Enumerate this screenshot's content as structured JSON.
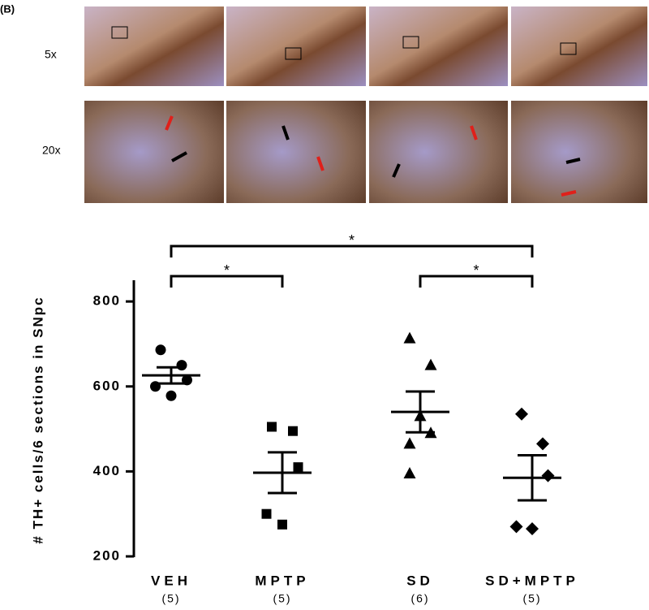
{
  "panel_label": "(B)",
  "row_labels": [
    "5x",
    "20x"
  ],
  "chart_data": {
    "type": "dotplot",
    "y_label": "# TH+ cells/6 sections in SNpc",
    "categories": [
      "VEH",
      "MPTP",
      "SD",
      "SD+MPTP"
    ],
    "n_labels": [
      "(5)",
      "(5)",
      "(6)",
      "(5)"
    ],
    "markers": [
      "circle",
      "square",
      "triangle",
      "diamond"
    ],
    "values": [
      [
        686,
        650,
        615,
        600,
        578
      ],
      [
        505,
        495,
        410,
        300,
        275
      ],
      [
        713,
        650,
        530,
        490,
        465,
        395
      ],
      [
        535,
        465,
        390,
        270,
        265
      ]
    ],
    "mean": [
      626,
      397,
      540,
      385
    ],
    "sem": [
      19,
      48,
      48,
      53
    ],
    "color": "#000000",
    "ylim": [
      200,
      850
    ],
    "yticks": [
      200,
      400,
      600,
      800
    ],
    "significance": [
      {
        "from": 0,
        "to": 3,
        "label": "*"
      },
      {
        "from": 0,
        "to": 1,
        "label": "*"
      },
      {
        "from": 2,
        "to": 3,
        "label": "*"
      }
    ]
  }
}
